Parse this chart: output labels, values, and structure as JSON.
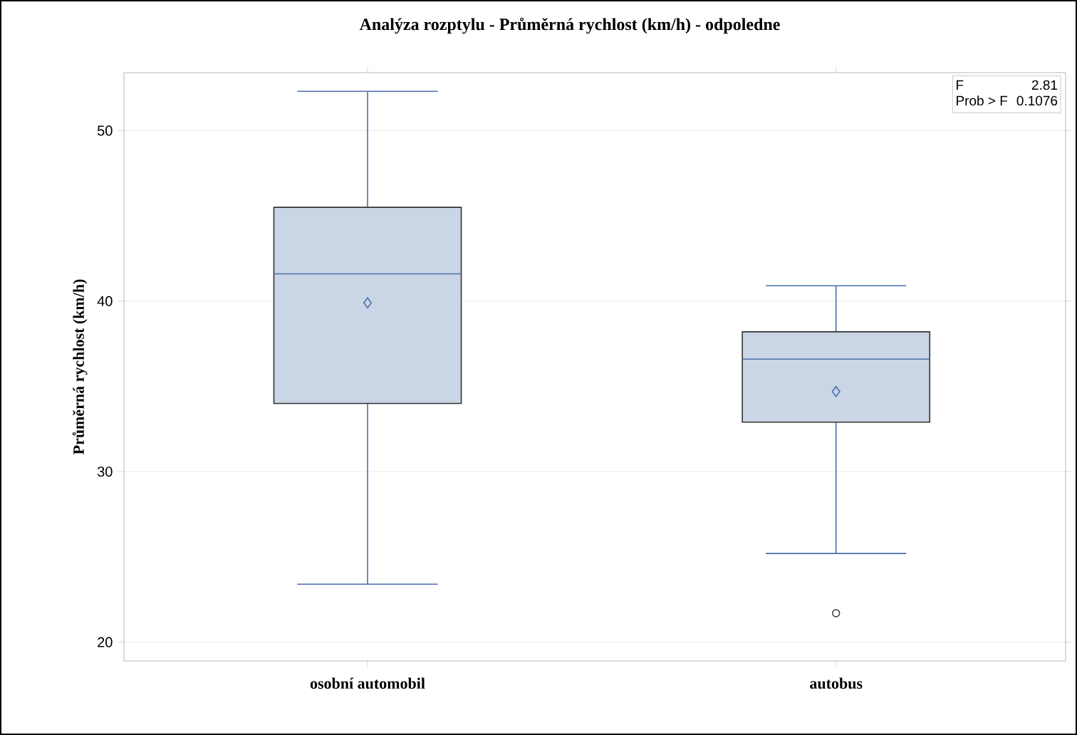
{
  "chart_data": {
    "type": "box",
    "title": "Analýza rozptylu - Průměrná rychlost (km/h) - odpoledne",
    "ylabel": "Průměrná rychlost (km/h)",
    "categories": [
      "osobní automobil",
      "autobus"
    ],
    "boxes": [
      {
        "low": 23.4,
        "q1": 34.0,
        "median": 41.6,
        "q3": 45.5,
        "high": 52.3,
        "mean": 39.9
      },
      {
        "low": 25.2,
        "q1": 32.9,
        "median": 36.6,
        "q3": 38.2,
        "high": 40.9,
        "mean": 34.7,
        "outliers": [
          21.7
        ]
      }
    ],
    "color": "#cad5e5",
    "ylim": [
      18.9,
      53.4
    ],
    "yticks": [
      20,
      30,
      40,
      50
    ],
    "grid": "y",
    "marker": "diamond",
    "annotations": [
      "F",
      "2.81",
      "Prob > F",
      "0.1076"
    ]
  }
}
